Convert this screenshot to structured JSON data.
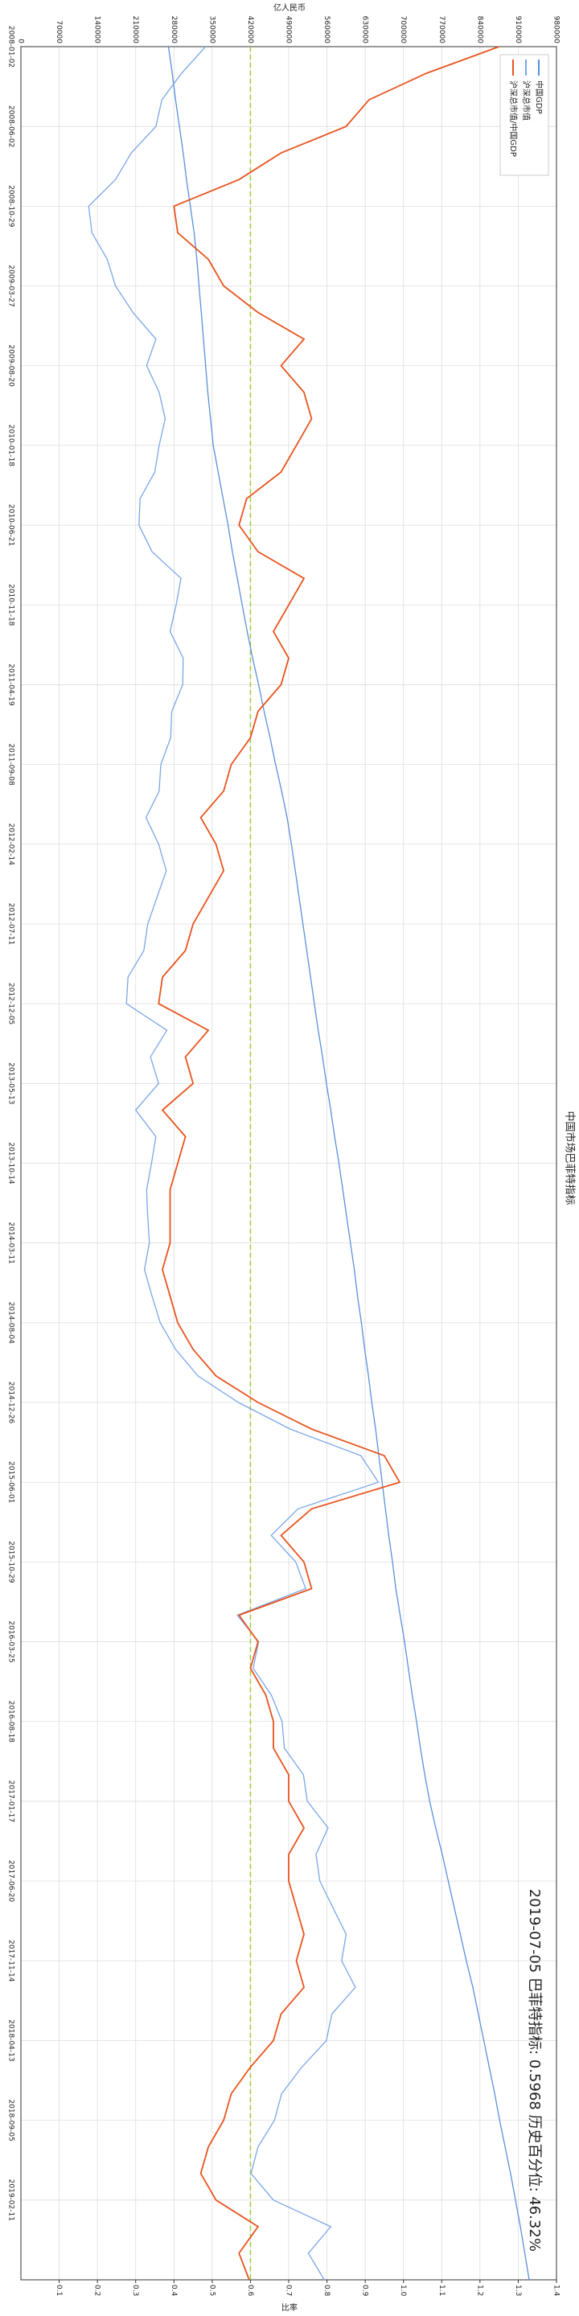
{
  "chart_data": {
    "type": "line",
    "title": "中国市场巴菲特指标",
    "annotation": "2019-07-05 巴菲特指标: 0.5968 历史百分位: 46.32%",
    "ylabel": "亿人民币",
    "y2label": "比率",
    "categories": [
      "2008-01-02",
      null,
      null,
      "2008-06-02",
      null,
      null,
      "2008-10-29",
      null,
      null,
      "2009-03-27",
      null,
      null,
      "2009-08-20",
      null,
      null,
      "2010-01-18",
      null,
      null,
      "2010-06-21",
      null,
      null,
      "2010-11-18",
      null,
      null,
      "2011-04-19",
      null,
      null,
      "2011-09-08",
      null,
      null,
      "2012-02-14",
      null,
      null,
      "2012-07-11",
      null,
      null,
      "2012-12-05",
      null,
      null,
      "2013-05-13",
      null,
      null,
      "2013-10-14",
      null,
      null,
      "2014-03-11",
      null,
      null,
      "2014-08-04",
      null,
      null,
      "2014-12-26",
      null,
      null,
      "2015-06-01",
      null,
      null,
      "2015-10-29",
      null,
      null,
      "2016-03-25",
      null,
      null,
      "2016-08-18",
      null,
      null,
      "2017-01-17",
      null,
      null,
      "2017-06-20",
      null,
      null,
      "2017-11-14",
      null,
      null,
      "2018-04-13",
      null,
      null,
      "2018-09-05",
      null,
      null,
      "2019-02-11",
      null,
      null,
      null
    ],
    "series": [
      {
        "name": "中国GDP",
        "color": "#5b8fdc",
        "values": [
          270000,
          277000,
          283000,
          290000,
          297000,
          303000,
          310000,
          317000,
          322000,
          326000,
          330000,
          334000,
          338000,
          342000,
          347000,
          352000,
          361000,
          370000,
          379000,
          387000,
          396000,
          405000,
          414000,
          424000,
          435000,
          445000,
          456000,
          466000,
          477000,
          487000,
          495000,
          502000,
          509000,
          516000,
          523000,
          530000,
          537000,
          544000,
          552000,
          559000,
          567000,
          574000,
          582000,
          589000,
          596000,
          603000,
          610000,
          616000,
          623000,
          629000,
          636000,
          642000,
          649000,
          655000,
          661000,
          667000,
          673000,
          680000,
          686000,
          694000,
          702000,
          709000,
          716000,
          724000,
          731000,
          739000,
          748000,
          759000,
          771000,
          782000,
          793000,
          804000,
          815000,
          827000,
          837000,
          847000,
          857000,
          867000,
          876000,
          886000,
          896000,
          905000,
          914000,
          922000,
          930000
        ]
      },
      {
        "name": "沪深总市值",
        "color": "#7aa6e8",
        "values": [
          338000,
          294000,
          258000,
          247000,
          202000,
          173000,
          124000,
          130000,
          158000,
          173000,
          205000,
          247000,
          230000,
          253000,
          264000,
          253000,
          245000,
          218000,
          216000,
          240000,
          293000,
          284000,
          273000,
          297000,
          296000,
          276000,
          274000,
          256000,
          253000,
          229000,
          252000,
          266000,
          249000,
          232000,
          225000,
          196000,
          193000,
          267000,
          237000,
          252000,
          210000,
          247000,
          239000,
          230000,
          232000,
          235000,
          226000,
          240000,
          255000,
          283000,
          324000,
          398000,
          493000,
          622000,
          654000,
          507000,
          458000,
          503000,
          521000,
          396000,
          435000,
          425000,
          458000,
          478000,
          482000,
          517000,
          524000,
          562000,
          540000,
          547000,
          571000,
          595000,
          587000,
          612000,
          569000,
          559000,
          514000,
          477000,
          464000,
          434000,
          421000,
          462000,
          567000,
          526000,
          555000
        ]
      },
      {
        "name": "沪深总市值/中国GDP",
        "color": "#e8541e",
        "axis": "y2",
        "values": [
          1.25,
          1.06,
          0.91,
          0.85,
          0.68,
          0.57,
          0.4,
          0.41,
          0.49,
          0.53,
          0.62,
          0.74,
          0.68,
          0.74,
          0.76,
          0.72,
          0.68,
          0.59,
          0.57,
          0.62,
          0.74,
          0.7,
          0.66,
          0.7,
          0.68,
          0.62,
          0.6,
          0.55,
          0.53,
          0.47,
          0.51,
          0.53,
          0.49,
          0.45,
          0.43,
          0.37,
          0.36,
          0.49,
          0.43,
          0.45,
          0.37,
          0.43,
          0.41,
          0.39,
          0.39,
          0.39,
          0.37,
          0.39,
          0.41,
          0.45,
          0.51,
          0.62,
          0.76,
          0.95,
          0.99,
          0.76,
          0.68,
          0.74,
          0.76,
          0.57,
          0.62,
          0.6,
          0.64,
          0.66,
          0.66,
          0.7,
          0.7,
          0.74,
          0.7,
          0.7,
          0.72,
          0.74,
          0.72,
          0.74,
          0.68,
          0.66,
          0.6,
          0.55,
          0.53,
          0.49,
          0.47,
          0.51,
          0.62,
          0.57,
          0.5968
        ]
      }
    ],
    "ylim": [
      0,
      980000
    ],
    "yticks": [
      0,
      70000,
      140000,
      210000,
      280000,
      350000,
      420000,
      490000,
      560000,
      630000,
      700000,
      770000,
      840000,
      910000,
      980000
    ],
    "y2lim": [
      0,
      1.4
    ],
    "y2ticks": [
      0.1,
      0.2,
      0.3,
      0.4,
      0.5,
      0.6,
      0.7,
      0.8,
      0.9,
      {
        "value": 1,
        "label": "1.0"
      },
      1.1,
      1.2,
      1.3,
      1.4
    ],
    "reference_line": {
      "value": 0.6,
      "axis": "y2",
      "color": "#9acd32"
    },
    "grid": true,
    "legend": "upper left"
  }
}
